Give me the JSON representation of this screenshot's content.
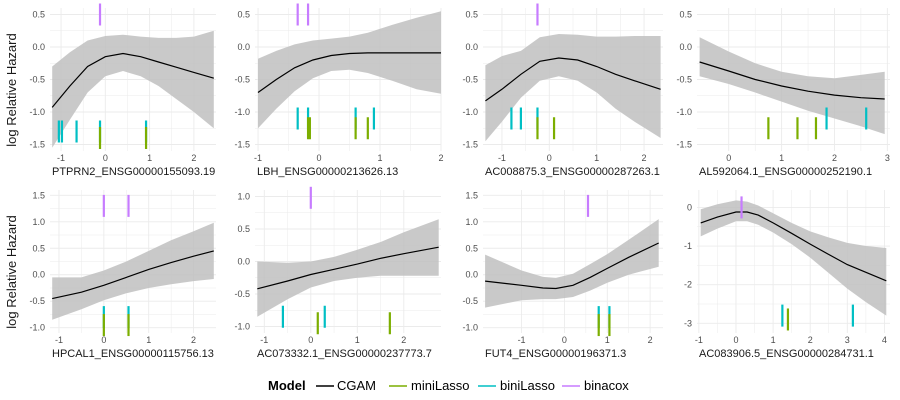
{
  "figure": {
    "ylabel": "log Relative Hazard",
    "legend": {
      "title": "Model",
      "position": "bottom",
      "entries": [
        {
          "label": "CGAM",
          "color": "#000000"
        },
        {
          "label": "miniLasso",
          "color": "#7CAE00"
        },
        {
          "label": "biniLasso",
          "color": "#00BFC4"
        },
        {
          "label": "binacox",
          "color": "#C77CFF"
        }
      ]
    },
    "colors": {
      "ribbon": "#bfbfbf",
      "grid": "#ebebeb",
      "tick_text": "#4d4d4d"
    }
  },
  "chart_data": [
    {
      "type": "line",
      "xlabel": "PTPRN2_ENSG00000155093.19",
      "xlim": [
        -1.25,
        2.5
      ],
      "ylim": [
        -1.6,
        0.6
      ],
      "xticks": [
        -1,
        0,
        1,
        2
      ],
      "yticks": [
        -1.5,
        -1.0,
        -0.5,
        0.0,
        0.5
      ],
      "ytick_labels": [
        "-1.5",
        "-1.0",
        "-0.5",
        "0.0",
        "0.5"
      ],
      "grid": true,
      "curve": {
        "x": [
          -1.2,
          -0.8,
          -0.4,
          0.0,
          0.4,
          0.8,
          1.2,
          1.6,
          2.0,
          2.45
        ],
        "y": [
          -0.93,
          -0.6,
          -0.3,
          -0.15,
          -0.1,
          -0.15,
          -0.23,
          -0.31,
          -0.39,
          -0.48
        ]
      },
      "band": {
        "lower": [
          -1.55,
          -1.12,
          -0.7,
          -0.45,
          -0.37,
          -0.45,
          -0.6,
          -0.8,
          -1.0,
          -1.25
        ],
        "upper": [
          -0.3,
          -0.08,
          0.1,
          0.17,
          0.19,
          0.16,
          0.14,
          0.14,
          0.16,
          0.25
        ]
      },
      "cutpoints": [
        {
          "model": "binacox",
          "x": [
            -0.12
          ],
          "y": 0.5
        },
        {
          "model": "biniLasso",
          "x": [
            -1.05,
            -0.98,
            -0.65,
            -0.12,
            0.92
          ],
          "y": -1.3
        },
        {
          "model": "miniLasso",
          "x": [
            -0.12,
            0.92
          ],
          "y": -1.4
        }
      ]
    },
    {
      "type": "line",
      "xlabel": "LBH_ENSG00000213626.13",
      "xlim": [
        -1.05,
        2.0
      ],
      "ylim": [
        -1.6,
        0.6
      ],
      "xticks": [
        -1,
        0,
        1,
        2
      ],
      "yticks": [
        -1.5,
        -1.0,
        -0.5,
        0.0,
        0.5
      ],
      "ytick_labels": [
        "-1.5",
        "-1.0",
        "-0.5",
        "0.0",
        "0.5"
      ],
      "grid": true,
      "curve": {
        "x": [
          -1.0,
          -0.7,
          -0.4,
          -0.1,
          0.2,
          0.5,
          0.8,
          1.2,
          1.6,
          2.0
        ],
        "y": [
          -0.7,
          -0.5,
          -0.32,
          -0.2,
          -0.13,
          -0.1,
          -0.09,
          -0.09,
          -0.09,
          -0.09
        ]
      },
      "band": {
        "lower": [
          -1.25,
          -0.95,
          -0.68,
          -0.48,
          -0.37,
          -0.35,
          -0.4,
          -0.52,
          -0.65,
          -0.72
        ],
        "upper": [
          -0.18,
          -0.06,
          0.04,
          0.1,
          0.13,
          0.16,
          0.22,
          0.34,
          0.45,
          0.55
        ]
      },
      "cutpoints": [
        {
          "model": "binacox",
          "x": [
            -0.35,
            -0.18
          ],
          "y": 0.5
        },
        {
          "model": "biniLasso",
          "x": [
            -0.35,
            -0.18,
            0.6,
            0.9
          ],
          "y": -1.1
        },
        {
          "model": "miniLasso",
          "x": [
            -0.18,
            -0.15,
            0.6,
            0.8
          ],
          "y": -1.25
        }
      ]
    },
    {
      "type": "line",
      "xlabel": "AC008875.3_ENSG00000287263.1",
      "xlim": [
        -1.4,
        2.4
      ],
      "ylim": [
        -1.6,
        0.6
      ],
      "xticks": [
        -1,
        0,
        1,
        2
      ],
      "yticks": [
        -1.5,
        -1.0,
        -0.5,
        0.0,
        0.5
      ],
      "ytick_labels": [
        "-1.5",
        "-1.0",
        "-0.5",
        "0.0",
        "0.5"
      ],
      "grid": true,
      "curve": {
        "x": [
          -1.35,
          -1.0,
          -0.6,
          -0.2,
          0.2,
          0.6,
          1.0,
          1.4,
          1.8,
          2.35
        ],
        "y": [
          -0.83,
          -0.65,
          -0.42,
          -0.22,
          -0.17,
          -0.2,
          -0.3,
          -0.42,
          -0.52,
          -0.65
        ]
      },
      "band": {
        "lower": [
          -1.45,
          -1.15,
          -0.78,
          -0.52,
          -0.45,
          -0.52,
          -0.7,
          -0.95,
          -1.15,
          -1.4
        ],
        "upper": [
          -0.28,
          -0.14,
          -0.06,
          0.15,
          0.2,
          0.19,
          0.16,
          0.16,
          0.17,
          0.17
        ]
      },
      "cutpoints": [
        {
          "model": "binacox",
          "x": [
            -0.25
          ],
          "y": 0.5
        },
        {
          "model": "biniLasso",
          "x": [
            -0.8,
            -0.6,
            -0.25
          ],
          "y": -1.1
        },
        {
          "model": "miniLasso",
          "x": [
            -0.25,
            0.1
          ],
          "y": -1.25
        }
      ]
    },
    {
      "type": "line",
      "xlabel": "AL592064.1_ENSG00000252190.1",
      "xlim": [
        -0.6,
        3.05
      ],
      "ylim": [
        -1.6,
        0.6
      ],
      "xticks": [
        0,
        1,
        2,
        3
      ],
      "yticks": [
        -1.5,
        -1.0,
        -0.5,
        0.0,
        0.5
      ],
      "ytick_labels": [
        "-1.5",
        "-1.0",
        "-0.5",
        "0.0",
        "0.5"
      ],
      "grid": true,
      "curve": {
        "x": [
          -0.55,
          0.0,
          0.5,
          1.0,
          1.5,
          2.0,
          2.5,
          2.95
        ],
        "y": [
          -0.23,
          -0.37,
          -0.5,
          -0.6,
          -0.68,
          -0.74,
          -0.78,
          -0.8
        ]
      },
      "band": {
        "lower": [
          -0.45,
          -0.57,
          -0.7,
          -0.84,
          -0.98,
          -1.1,
          -1.22,
          -1.34
        ],
        "upper": [
          0.15,
          -0.07,
          -0.25,
          -0.38,
          -0.45,
          -0.48,
          -0.43,
          -0.38
        ]
      },
      "cutpoints": [
        {
          "model": "biniLasso",
          "x": [
            1.85,
            2.6
          ],
          "y": -1.1
        },
        {
          "model": "miniLasso",
          "x": [
            0.75,
            1.3,
            1.65
          ],
          "y": -1.25
        }
      ]
    },
    {
      "type": "line",
      "xlabel": "HPCAL1_ENSG00000115756.13",
      "xlim": [
        -1.2,
        2.5
      ],
      "ylim": [
        -1.1,
        1.6
      ],
      "xticks": [
        -1,
        0,
        1,
        2
      ],
      "yticks": [
        -1.0,
        -0.5,
        0.0,
        0.5,
        1.0,
        1.5
      ],
      "ytick_labels": [
        "-1.0",
        "-0.5",
        "0.0",
        "0.5",
        "1.0",
        "1.5"
      ],
      "grid": true,
      "curve": {
        "x": [
          -1.15,
          -0.5,
          0.0,
          0.5,
          1.0,
          1.5,
          2.0,
          2.45
        ],
        "y": [
          -0.45,
          -0.33,
          -0.2,
          -0.05,
          0.1,
          0.23,
          0.35,
          0.45
        ]
      },
      "band": {
        "lower": [
          -0.85,
          -0.65,
          -0.48,
          -0.35,
          -0.25,
          -0.18,
          -0.12,
          -0.08
        ],
        "upper": [
          -0.05,
          -0.05,
          0.08,
          0.25,
          0.45,
          0.65,
          0.82,
          0.98
        ]
      },
      "cutpoints": [
        {
          "model": "binacox",
          "x": [
            0.0,
            0.55
          ],
          "y": 1.3
        },
        {
          "model": "biniLasso",
          "x": [
            0.0,
            0.55
          ],
          "y": -0.8
        },
        {
          "model": "miniLasso",
          "x": [
            0.0,
            0.55
          ],
          "y": -0.95
        }
      ]
    },
    {
      "type": "line",
      "xlabel": "AC073332.1_ENSG00000237773.7",
      "xlim": [
        -1.2,
        2.8
      ],
      "ylim": [
        -1.1,
        1.1
      ],
      "xticks": [
        -1,
        0,
        1,
        2
      ],
      "yticks": [
        -1.0,
        -0.5,
        0.0,
        0.5,
        1.0
      ],
      "ytick_labels": [
        "-1.0",
        "-0.5",
        "0.0",
        "0.5",
        "1.0"
      ],
      "grid": true,
      "curve": {
        "x": [
          -1.15,
          -0.5,
          0.0,
          0.5,
          1.0,
          1.5,
          2.0,
          2.75
        ],
        "y": [
          -0.42,
          -0.3,
          -0.2,
          -0.12,
          -0.04,
          0.05,
          0.12,
          0.22
        ]
      },
      "band": {
        "lower": [
          -0.85,
          -0.58,
          -0.4,
          -0.3,
          -0.25,
          -0.22,
          -0.22,
          -0.22
        ],
        "upper": [
          0.0,
          -0.02,
          0.0,
          0.07,
          0.18,
          0.3,
          0.45,
          0.65
        ]
      },
      "cutpoints": [
        {
          "model": "binacox",
          "x": [
            0.0
          ],
          "y": 0.98
        },
        {
          "model": "biniLasso",
          "x": [
            -0.6,
            0.3
          ],
          "y": -0.85
        },
        {
          "model": "miniLasso",
          "x": [
            0.15,
            1.7
          ],
          "y": -0.95
        }
      ]
    },
    {
      "type": "line",
      "xlabel": "FUT4_ENSG00000196371.3",
      "xlim": [
        -1.9,
        2.3
      ],
      "ylim": [
        -1.1,
        1.6
      ],
      "xticks": [
        -1,
        0,
        1,
        2
      ],
      "yticks": [
        -1.0,
        -0.5,
        0.0,
        0.5,
        1.0,
        1.5
      ],
      "ytick_labels": [
        "-1.0",
        "-0.5",
        "0.0",
        "0.5",
        "1.0",
        "1.5"
      ],
      "grid": true,
      "curve": {
        "x": [
          -1.85,
          -1.0,
          -0.5,
          -0.2,
          0.2,
          0.6,
          1.0,
          1.5,
          2.2
        ],
        "y": [
          -0.12,
          -0.2,
          -0.25,
          -0.26,
          -0.2,
          -0.05,
          0.12,
          0.33,
          0.6
        ]
      },
      "band": {
        "lower": [
          -0.62,
          -0.48,
          -0.46,
          -0.46,
          -0.42,
          -0.3,
          -0.15,
          0.0,
          0.15
        ],
        "upper": [
          0.38,
          0.08,
          -0.04,
          -0.06,
          0.02,
          0.2,
          0.39,
          0.66,
          1.05
        ]
      },
      "cutpoints": [
        {
          "model": "binacox",
          "x": [
            0.55
          ],
          "y": 1.3
        },
        {
          "model": "biniLasso",
          "x": [
            0.8,
            1.05
          ],
          "y": -0.8
        },
        {
          "model": "miniLasso",
          "x": [
            0.8,
            1.05
          ],
          "y": -0.95
        }
      ]
    },
    {
      "type": "line",
      "xlabel": "AC083906.5_ENSG00000284731.1",
      "xlim": [
        -1.05,
        4.15
      ],
      "ylim": [
        -3.25,
        0.45
      ],
      "xticks": [
        -1,
        0,
        1,
        2,
        3,
        4
      ],
      "yticks": [
        -3,
        -2,
        -1,
        0
      ],
      "ytick_labels": [
        "-3",
        "-2",
        "-1",
        "0"
      ],
      "grid": true,
      "curve": {
        "x": [
          -0.95,
          -0.5,
          0.0,
          0.3,
          0.6,
          1.0,
          1.5,
          2.0,
          2.5,
          3.0,
          3.5,
          4.05
        ],
        "y": [
          -0.4,
          -0.25,
          -0.12,
          -0.12,
          -0.2,
          -0.4,
          -0.67,
          -0.95,
          -1.22,
          -1.48,
          -1.68,
          -1.9
        ]
      },
      "band": {
        "lower": [
          -0.75,
          -0.55,
          -0.36,
          -0.36,
          -0.45,
          -0.65,
          -0.95,
          -1.3,
          -1.7,
          -2.1,
          -2.45,
          -2.8
        ]
      },
      "band_upper_note": "",
      "band_upper": [
        -0.05,
        0.08,
        0.18,
        0.15,
        0.05,
        -0.15,
        -0.4,
        -0.62,
        -0.78,
        -0.92,
        -1.0,
        -1.05
      ],
      "cutpoints": [
        {
          "model": "binacox",
          "x": [
            0.15
          ],
          "y": 0.0
        },
        {
          "model": "biniLasso",
          "x": [
            1.25,
            3.15
          ],
          "y": -2.8
        },
        {
          "model": "miniLasso",
          "x": [
            1.4
          ],
          "y": -2.9
        }
      ]
    }
  ]
}
